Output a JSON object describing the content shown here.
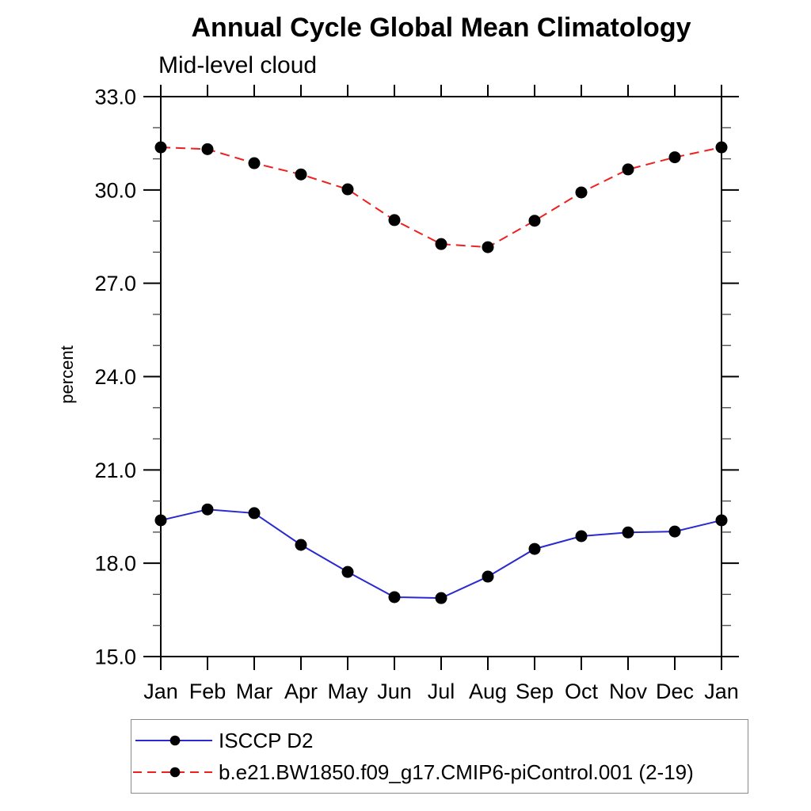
{
  "title": "Annual Cycle Global Mean Climatology",
  "subtitle": "Mid-level cloud",
  "colors": {
    "series_blue": "#2a2ad0",
    "series_red": "#ee2020",
    "marker": "#000000",
    "axis": "#000000",
    "minor_tick": "#444444",
    "legend_border": "#8a8a8a",
    "background": "#ffffff"
  },
  "chart_data": {
    "type": "line",
    "title": "Annual Cycle Global Mean Climatology",
    "subtitle": "Mid-level cloud",
    "ylabel": "percent",
    "xlabel": "",
    "categories": [
      "Jan",
      "Feb",
      "Mar",
      "Apr",
      "May",
      "Jun",
      "Jul",
      "Aug",
      "Sep",
      "Oct",
      "Nov",
      "Dec",
      "Jan"
    ],
    "series": [
      {
        "name": "ISCCP D2",
        "style": "solid",
        "color_key": "series_blue",
        "marker": "filled-circle",
        "values": [
          19.38,
          19.73,
          19.61,
          18.59,
          17.72,
          16.91,
          16.88,
          17.57,
          18.46,
          18.87,
          18.99,
          19.02,
          19.38
        ]
      },
      {
        "name": "b.e21.BW1850.f09_g17.CMIP6-piControl.001 (2-19)",
        "style": "dashed",
        "color_key": "series_red",
        "marker": "filled-circle",
        "values": [
          31.37,
          31.31,
          30.86,
          30.5,
          30.02,
          29.03,
          28.26,
          28.16,
          29.01,
          29.92,
          30.66,
          31.05,
          31.37
        ]
      }
    ],
    "ylim": [
      15.0,
      33.0
    ],
    "ytick_major_step": 3.0,
    "ytick_minor_step": 1.0,
    "ytick_decimals": 1,
    "grid": false,
    "legend_position": "bottom-left-box"
  }
}
